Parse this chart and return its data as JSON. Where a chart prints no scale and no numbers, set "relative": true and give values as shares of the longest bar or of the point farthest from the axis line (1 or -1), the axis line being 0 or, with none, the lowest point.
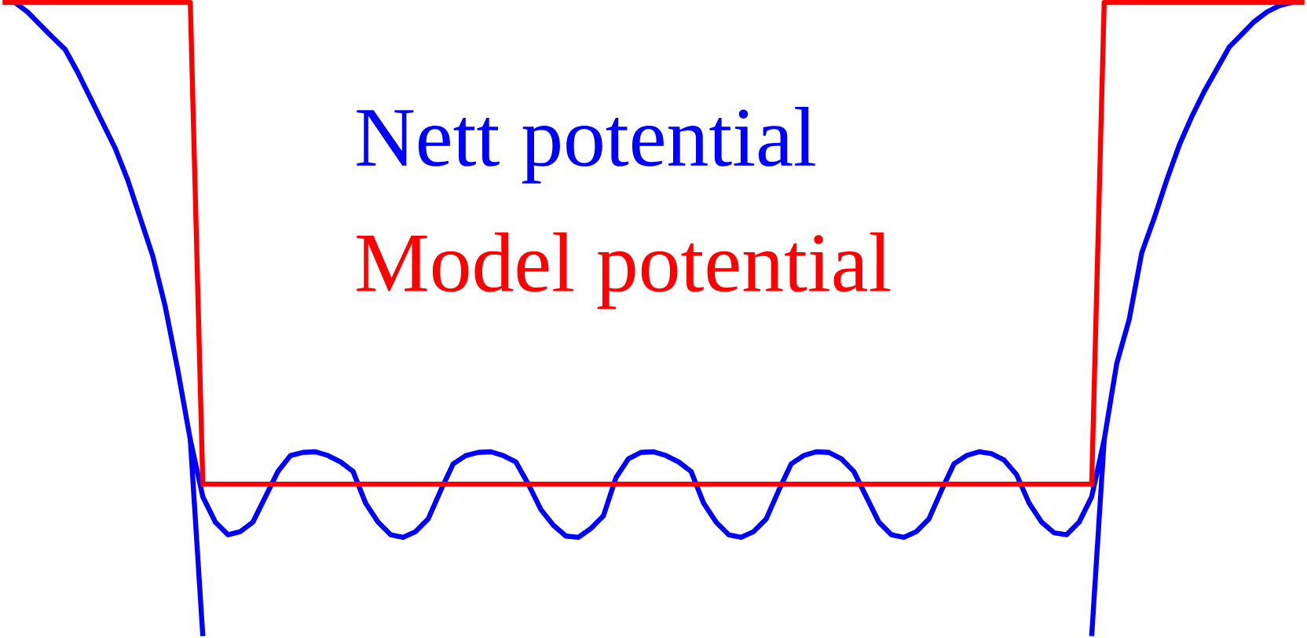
{
  "chart_data": {
    "type": "line",
    "relative": true,
    "legend": false,
    "marker": "none",
    "line_style": "solid",
    "categories": [
      null,
      null,
      null,
      null,
      null,
      null,
      null,
      null,
      null,
      null,
      null,
      null,
      null,
      null,
      null,
      null,
      null,
      null,
      null,
      null,
      null,
      null,
      null,
      null,
      null,
      null,
      null,
      null,
      null,
      null,
      null,
      null,
      null,
      null,
      null,
      null,
      null,
      null,
      null,
      null,
      null,
      null,
      null,
      null,
      null,
      null,
      null,
      null,
      null,
      null,
      null,
      null,
      null,
      null,
      null,
      null,
      null,
      null,
      null,
      null,
      null,
      null,
      null,
      null,
      null,
      null,
      null,
      null,
      null,
      null,
      null,
      null,
      null,
      null,
      null,
      null,
      null,
      null,
      null,
      null,
      null,
      null,
      null,
      null,
      null,
      null,
      null,
      null,
      null,
      null,
      null,
      null,
      null,
      null,
      null,
      null,
      null,
      null,
      null,
      null,
      null,
      null,
      null,
      null,
      null
    ],
    "series": [
      {
        "name": "Nett potential",
        "color": "#0000ff",
        "values": [
          null,
          1.0,
          0.985,
          0.965,
          0.945,
          0.926,
          0.89,
          0.85,
          0.81,
          0.77,
          0.72,
          0.66,
          0.6,
          0.52,
          0.42,
          0.31,
          0.22,
          0.18,
          0.16,
          0.165,
          0.18,
          0.22,
          0.26,
          0.285,
          0.29,
          0.291,
          0.285,
          0.275,
          0.26,
          0.21,
          0.18,
          0.16,
          0.156,
          0.165,
          0.185,
          0.23,
          0.272,
          0.285,
          0.29,
          0.291,
          0.285,
          0.275,
          0.24,
          0.2,
          0.175,
          0.158,
          0.156,
          0.17,
          0.19,
          0.25,
          0.28,
          0.29,
          0.291,
          0.285,
          0.275,
          0.26,
          0.21,
          0.18,
          0.16,
          0.156,
          0.165,
          0.185,
          0.23,
          0.272,
          0.285,
          0.291,
          0.29,
          0.28,
          0.26,
          0.22,
          0.18,
          0.16,
          0.156,
          0.165,
          0.185,
          0.23,
          0.272,
          0.285,
          0.291,
          0.288,
          0.278,
          0.255,
          0.21,
          0.18,
          0.163,
          0.16,
          0.18,
          0.22,
          0.31,
          0.43,
          0.5,
          0.605,
          0.66,
          0.72,
          0.775,
          0.82,
          0.86,
          0.895,
          0.93,
          0.95,
          0.97,
          0.985,
          0.995,
          1.0,
          null
        ]
      },
      {
        "color": "#0000ff",
        "values": [
          null,
          null,
          null,
          null,
          null,
          null,
          null,
          null,
          null,
          null,
          null,
          null,
          null,
          null,
          null,
          0.31,
          0,
          null,
          null,
          null,
          null,
          null,
          null,
          null,
          null,
          null,
          null,
          null,
          null,
          null,
          null,
          null,
          null,
          null,
          null,
          null,
          null,
          null,
          null,
          null,
          null,
          null,
          null,
          null,
          null,
          null,
          null,
          null,
          null,
          null,
          null,
          null,
          null,
          null,
          null,
          null,
          null,
          null,
          null,
          null,
          null,
          null,
          null,
          null,
          null,
          null,
          null,
          null,
          null,
          null,
          null,
          null,
          null,
          null,
          null,
          null,
          null,
          null,
          null,
          null,
          null,
          null,
          null,
          null,
          null,
          null,
          null,
          null,
          null,
          null,
          null,
          null,
          null,
          null,
          null,
          null,
          null,
          null,
          null,
          null,
          null,
          null,
          null,
          null,
          null
        ]
      },
      {
        "color": "#0000ff",
        "values": [
          null,
          null,
          null,
          null,
          null,
          null,
          null,
          null,
          null,
          null,
          null,
          null,
          null,
          null,
          null,
          null,
          null,
          null,
          null,
          null,
          null,
          null,
          null,
          null,
          null,
          null,
          null,
          null,
          null,
          null,
          null,
          null,
          null,
          null,
          null,
          null,
          null,
          null,
          null,
          null,
          null,
          null,
          null,
          null,
          null,
          null,
          null,
          null,
          null,
          null,
          null,
          null,
          null,
          null,
          null,
          null,
          null,
          null,
          null,
          null,
          null,
          null,
          null,
          null,
          null,
          null,
          null,
          null,
          null,
          null,
          null,
          null,
          null,
          null,
          null,
          null,
          null,
          null,
          null,
          null,
          null,
          null,
          null,
          null,
          null,
          null,
          null,
          0,
          0.31,
          null,
          null,
          null,
          null,
          null,
          null,
          null,
          null,
          null,
          null,
          null,
          null,
          null,
          null,
          null,
          null
        ]
      },
      {
        "name": "Model potential",
        "color": "#ff0000",
        "values": [
          1,
          1,
          1,
          1,
          1,
          1,
          1,
          1,
          1,
          1,
          1,
          1,
          1,
          1,
          1,
          1,
          0.24,
          0.24,
          0.24,
          0.24,
          0.24,
          0.24,
          0.24,
          0.24,
          0.24,
          0.24,
          0.24,
          0.24,
          0.24,
          0.24,
          0.24,
          0.24,
          0.24,
          0.24,
          0.24,
          0.24,
          0.24,
          0.24,
          0.24,
          0.24,
          0.24,
          0.24,
          0.24,
          0.24,
          0.24,
          0.24,
          0.24,
          0.24,
          0.24,
          0.24,
          0.24,
          0.24,
          0.24,
          0.24,
          0.24,
          0.24,
          0.24,
          0.24,
          0.24,
          0.24,
          0.24,
          0.24,
          0.24,
          0.24,
          0.24,
          0.24,
          0.24,
          0.24,
          0.24,
          0.24,
          0.24,
          0.24,
          0.24,
          0.24,
          0.24,
          0.24,
          0.24,
          0.24,
          0.24,
          0.24,
          0.24,
          0.24,
          0.24,
          0.24,
          0.24,
          0.24,
          0.24,
          0.24,
          1,
          1,
          1,
          1,
          1,
          1,
          1,
          1,
          1,
          1,
          1,
          1,
          1,
          1,
          1,
          1,
          1
        ]
      }
    ]
  }
}
